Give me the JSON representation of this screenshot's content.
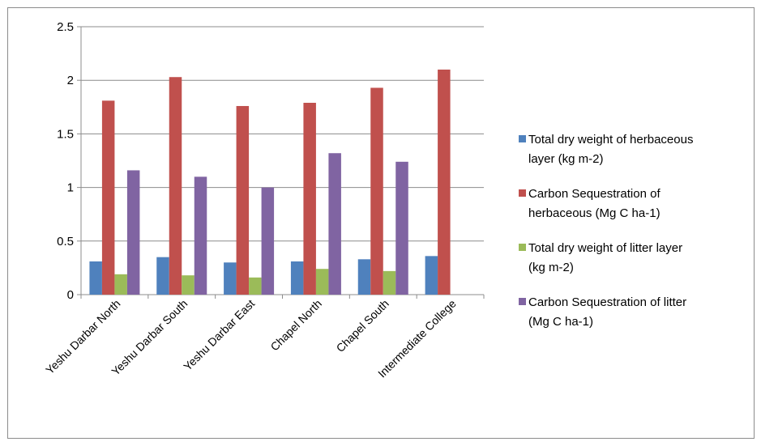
{
  "chart_data": {
    "type": "bar",
    "categories": [
      "Yeshu Darbar North",
      "Yeshu Darbar South",
      "Yeshu Darbar East",
      "Chapel North",
      "Chapel South",
      "Intermediate College"
    ],
    "series": [
      {
        "name": "Total dry weight of herbaceous layer (kg m-2)",
        "name_lines": [
          "Total dry weight of herbaceous",
          "layer (kg m-2)"
        ],
        "color": "#4f81bd",
        "values": [
          0.31,
          0.35,
          0.3,
          0.31,
          0.33,
          0.36
        ]
      },
      {
        "name": "Carbon Sequestration of herbaceous (Mg C ha-1)",
        "name_lines": [
          "Carbon Sequestration of",
          "herbaceous (Mg C ha-1)"
        ],
        "color": "#c0504d",
        "values": [
          1.81,
          2.03,
          1.76,
          1.79,
          1.93,
          2.1
        ]
      },
      {
        "name": "Total dry weight of litter layer (kg m-2)",
        "name_lines": [
          "Total dry weight of litter layer",
          "(kg m-2)"
        ],
        "color": "#9bbb59",
        "values": [
          0.19,
          0.18,
          0.16,
          0.24,
          0.22,
          null
        ]
      },
      {
        "name": "Carbon Sequestration of litter (Mg C ha-1)",
        "name_lines": [
          "Carbon Sequestration of litter",
          "(Mg C ha-1)"
        ],
        "color": "#8064a2",
        "values": [
          1.16,
          1.1,
          1.0,
          1.32,
          1.24,
          null
        ]
      }
    ],
    "ylim": [
      0,
      2.5
    ],
    "yticks": [
      0,
      0.5,
      1,
      1.5,
      2,
      2.5
    ],
    "ytick_labels": [
      "0",
      "0.5",
      "1",
      "1.5",
      "2",
      "2.5"
    ],
    "grid": true,
    "legend": "right"
  }
}
